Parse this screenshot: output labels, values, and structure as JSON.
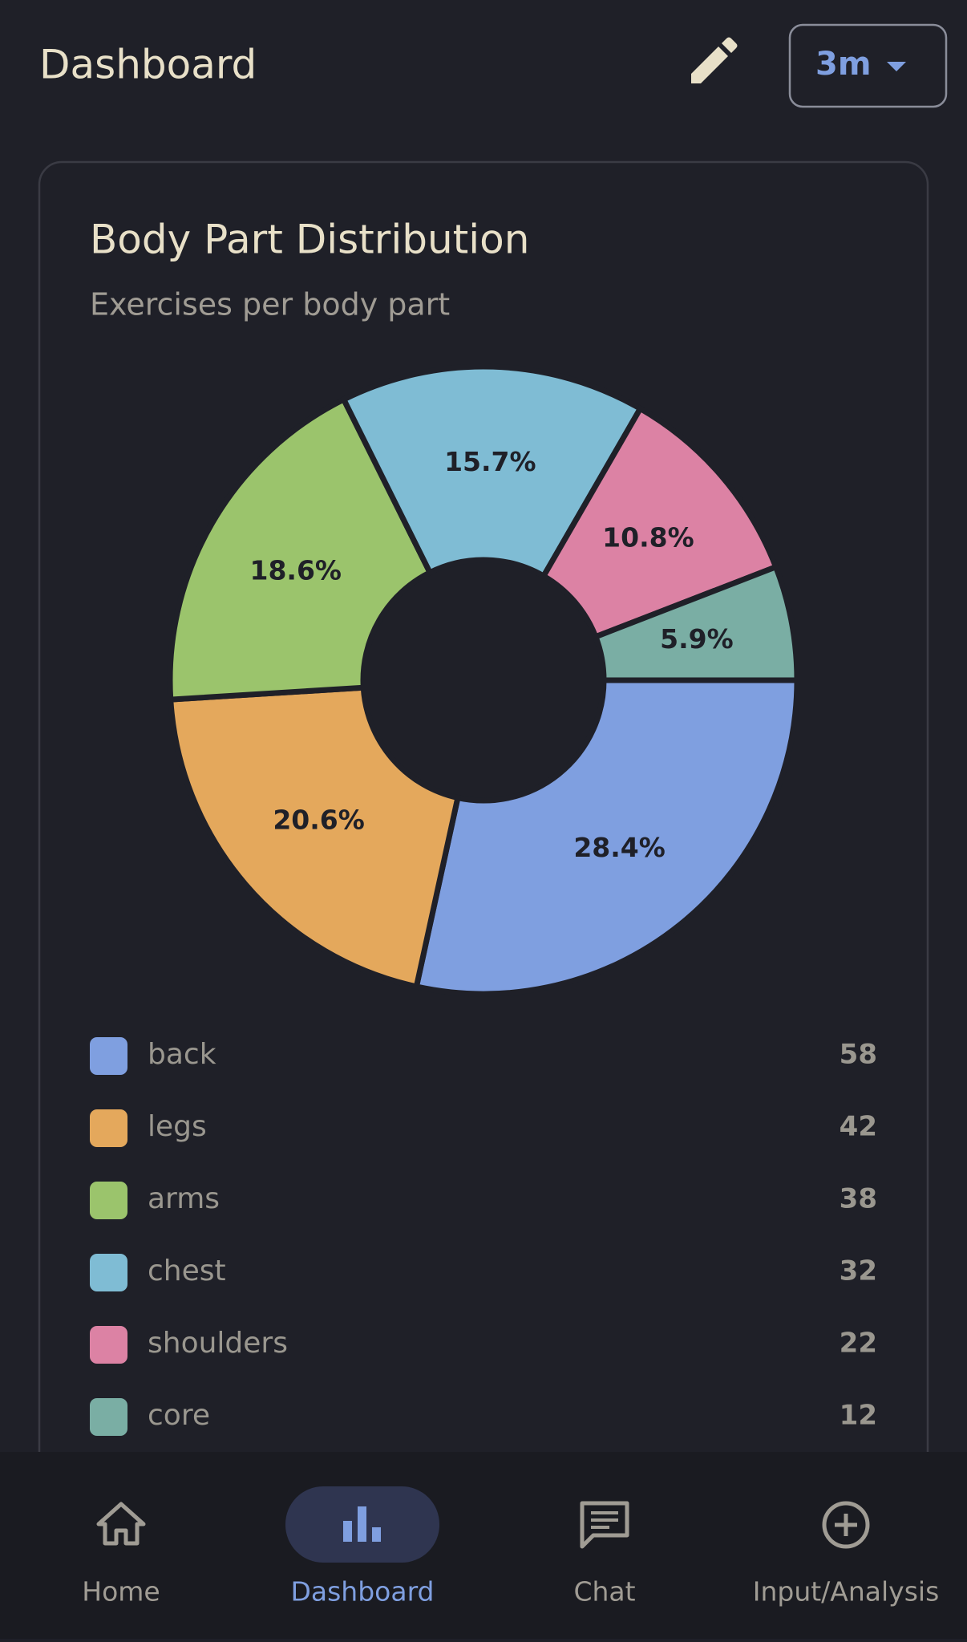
{
  "header": {
    "title": "Dashboard",
    "range": "3m"
  },
  "card": {
    "title": "Body Part Distribution",
    "subtitle": "Exercises per body part"
  },
  "chart_data": {
    "type": "pie",
    "donut": true,
    "categories": [
      "back",
      "legs",
      "arms",
      "chest",
      "shoulders",
      "core"
    ],
    "values": [
      58,
      42,
      38,
      32,
      22,
      12
    ],
    "percent_labels": [
      "28.4%",
      "20.6%",
      "18.6%",
      "15.7%",
      "10.8%",
      "5.9%"
    ],
    "colors": [
      "#7f9fe0",
      "#e4a85c",
      "#9bc46c",
      "#7fbcd4",
      "#dc82a4",
      "#7aaea4"
    ]
  },
  "nav": {
    "items": [
      "Home",
      "Dashboard",
      "Chat",
      "Input/Analysis"
    ]
  }
}
